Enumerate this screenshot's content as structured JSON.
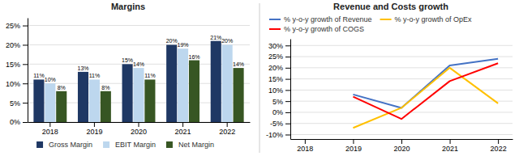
{
  "chart_data": [
    {
      "type": "bar",
      "title": "Margins",
      "categories": [
        "2018",
        "2019",
        "2020",
        "2021",
        "2022"
      ],
      "series": [
        {
          "name": "Gross Margin",
          "color": "#1F3864",
          "values": [
            11,
            13,
            15,
            20,
            21
          ],
          "value_labels": [
            "11%",
            "13%",
            "15%",
            "20%",
            "21%"
          ]
        },
        {
          "name": "EBIT Margin",
          "color": "#BDD7EE",
          "values": [
            10,
            11,
            14,
            19,
            20
          ],
          "value_labels": [
            "10%",
            "11%",
            "14%",
            "19%",
            "20%"
          ]
        },
        {
          "name": "Net Margin",
          "color": "#375623",
          "values": [
            8,
            8,
            11,
            16,
            14
          ],
          "value_labels": [
            "8%",
            "8%",
            "11%",
            "16%",
            "14%"
          ]
        }
      ],
      "ylim": [
        0,
        27
      ],
      "yticks": [
        {
          "value": 0,
          "label": "0%"
        },
        {
          "value": 5,
          "label": "5%"
        },
        {
          "value": 10,
          "label": "10%"
        },
        {
          "value": 15,
          "label": "15%"
        },
        {
          "value": 20,
          "label": "20%"
        },
        {
          "value": 25,
          "label": "25%"
        }
      ],
      "grid": true,
      "data_labels": true,
      "legend": "bottom"
    },
    {
      "type": "line",
      "title": "Revenue and Costs growth",
      "categories": [
        "2018",
        "2019",
        "2020",
        "2021",
        "2022"
      ],
      "series": [
        {
          "name": "% y-o-y growth of Revenue",
          "color": "#4472C4",
          "values": [
            null,
            8,
            2,
            21,
            24
          ]
        },
        {
          "name": "% y-o-y growth of OpEx",
          "color": "#FFC000",
          "values": [
            null,
            -7,
            2,
            20,
            4
          ]
        },
        {
          "name": "% y-o-y growth of COGS",
          "color": "#FF0000",
          "values": [
            null,
            7,
            -3,
            14,
            22
          ]
        }
      ],
      "ylim": [
        -12,
        33
      ],
      "yticks": [
        {
          "value": -10,
          "label": "-10%"
        },
        {
          "value": -5,
          "label": "-5%"
        },
        {
          "value": 0,
          "label": "0%"
        },
        {
          "value": 5,
          "label": "5%"
        },
        {
          "value": 10,
          "label": "10%"
        },
        {
          "value": 15,
          "label": "15%"
        },
        {
          "value": 20,
          "label": "20%"
        },
        {
          "value": 25,
          "label": "25%"
        },
        {
          "value": 30,
          "label": "30%"
        }
      ],
      "grid": true,
      "legend": "top left"
    }
  ]
}
